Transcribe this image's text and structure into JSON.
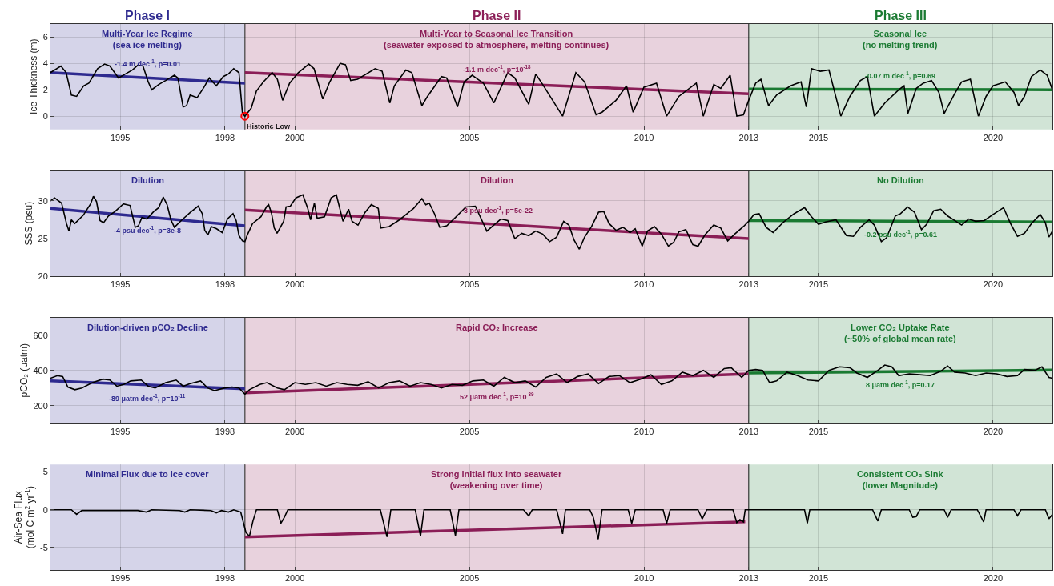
{
  "chart_data": [
    {
      "type": "line",
      "ylabel": "Ice Thickness (m)",
      "xlim": [
        1993.0,
        2021.7
      ],
      "ylim": [
        -1,
        7
      ],
      "yticks": [
        0,
        2,
        4,
        6
      ],
      "xticks": [
        1995,
        1998,
        2000,
        2005,
        2010,
        2013,
        2015,
        2020
      ],
      "grid": true,
      "bands": [
        {
          "axis": "x",
          "from": 1993.0,
          "to": 1998.57,
          "label": "Phase I",
          "color": "#2e2a8f"
        },
        {
          "axis": "x",
          "from": 1998.57,
          "to": 2013.0,
          "label": "Phase II",
          "color": "#8b1e57"
        },
        {
          "axis": "x",
          "from": 2013.0,
          "to": 2021.7,
          "label": "Phase III",
          "color": "#1a7a32"
        }
      ],
      "annotations": [
        "Multi-Year Ice Regime\n(sea ice melting)",
        "Multi-Year to Seasonal Ice Transition\n(seawater exposed to atmosphere, melting continues)",
        "Seasonal Ice\n(no melting trend)",
        "-1.4 m dec$^{-1}$, p=0.01",
        "-1.1 m dec$^{-1}$, p=10$^{-18}$",
        "-0.07 m dec$^{-1}$, p=0.69",
        {
          "text": "Historic Low",
          "x": 1998.57,
          "y": 0
        }
      ],
      "series": [
        {
          "color": "#000000",
          "x": [
            1993.0,
            1993.3,
            1993.45,
            1993.6,
            1993.75,
            1993.95,
            1994.1,
            1994.35,
            1994.55,
            1994.7,
            1994.95,
            1995.15,
            1995.35,
            1995.5,
            1995.65,
            1995.8,
            1995.9,
            1996.1,
            1996.3,
            1996.55,
            1996.65,
            1996.8,
            1996.9,
            1997.0,
            1997.2,
            1997.4,
            1997.55,
            1997.75,
            1997.95,
            1998.1,
            1998.25,
            1998.4,
            1998.5,
            1998.57,
            1998.75,
            1998.9,
            1999.1,
            1999.35,
            1999.5,
            1999.65,
            1999.85,
            2000.1,
            2000.4,
            2000.55,
            2000.8,
            2001.0,
            2001.3,
            2001.45,
            2001.6,
            2001.8,
            2002.3,
            2002.5,
            2002.72,
            2002.85,
            2003.18,
            2003.35,
            2003.64,
            2003.8,
            2004.2,
            2004.35,
            2004.66,
            2004.85,
            2005.08,
            2005.4,
            2005.7,
            2006.1,
            2006.3,
            2006.7,
            2006.9,
            2007.1,
            2007.67,
            2008.05,
            2008.3,
            2008.63,
            2008.8,
            2009.2,
            2009.5,
            2009.69,
            2010.0,
            2010.36,
            2010.65,
            2011.0,
            2011.5,
            2011.7,
            2012.0,
            2012.2,
            2012.47,
            2012.66,
            2012.85,
            2013.0,
            2013.2,
            2013.35,
            2013.57,
            2013.8,
            2014.2,
            2014.5,
            2014.65,
            2014.8,
            2015.05,
            2015.3,
            2015.64,
            2015.9,
            2016.2,
            2016.4,
            2016.6,
            2016.9,
            2017.3,
            2017.45,
            2017.56,
            2017.8,
            2018.0,
            2018.24,
            2018.45,
            2018.6,
            2018.9,
            2019.1,
            2019.35,
            2019.58,
            2019.8,
            2020.0,
            2020.35,
            2020.6,
            2020.73,
            2020.9,
            2021.1,
            2021.35,
            2021.55,
            2021.7
          ],
          "values": [
            3.3,
            3.8,
            3.3,
            1.6,
            1.5,
            2.3,
            2.5,
            3.6,
            3.95,
            3.8,
            2.9,
            3.2,
            3.5,
            3.85,
            3.8,
            2.6,
            2.0,
            2.4,
            2.7,
            3.1,
            2.9,
            0.7,
            0.8,
            1.6,
            1.4,
            2.2,
            2.9,
            2.3,
            3.0,
            3.2,
            3.6,
            3.3,
            0.2,
            0.0,
            0.6,
            1.9,
            2.6,
            3.3,
            2.8,
            1.2,
            2.5,
            3.3,
            3.95,
            3.6,
            1.3,
            2.6,
            4.0,
            3.9,
            2.7,
            2.8,
            3.6,
            3.4,
            1.0,
            2.3,
            3.5,
            3.3,
            0.8,
            1.5,
            3.0,
            2.9,
            0.7,
            2.6,
            3.1,
            2.5,
            1.0,
            3.3,
            2.9,
            0.9,
            3.2,
            2.4,
            0.0,
            3.3,
            2.6,
            0.1,
            0.3,
            1.2,
            2.3,
            0.3,
            2.2,
            2.5,
            0.0,
            1.5,
            2.5,
            0.0,
            2.4,
            2.1,
            3.1,
            0.0,
            0.1,
            1.2,
            2.5,
            2.8,
            0.8,
            1.6,
            2.3,
            2.6,
            0.7,
            3.6,
            3.4,
            3.5,
            0.0,
            1.5,
            2.7,
            3.0,
            0.0,
            1.0,
            2.0,
            2.3,
            0.2,
            2.1,
            2.5,
            2.7,
            1.8,
            0.2,
            1.7,
            2.6,
            2.8,
            0.0,
            1.5,
            2.3,
            2.6,
            1.8,
            0.8,
            1.5,
            3.0,
            3.5,
            3.1,
            2.0
          ]
        },
        {
          "color": "#2e2a8f",
          "x": [
            1993.0,
            1998.57
          ],
          "values": [
            3.3,
            2.5
          ]
        },
        {
          "color": "#8b1e57",
          "x": [
            1998.57,
            2013.0
          ],
          "values": [
            3.3,
            1.7
          ]
        },
        {
          "color": "#1a7a32",
          "x": [
            2013.0,
            2021.7
          ],
          "values": [
            2.05,
            2.0
          ]
        },
        {
          "type": "scatter",
          "marker": "circle",
          "color": "#ff0000",
          "x": [
            1998.57
          ],
          "values": [
            0
          ]
        }
      ]
    },
    {
      "type": "line",
      "ylabel": "SSS (psu)",
      "xlim": [
        1993.0,
        2021.7
      ],
      "ylim": [
        20,
        34
      ],
      "yticks": [
        20,
        25,
        30
      ],
      "xticks": [
        1995,
        1998,
        2000,
        2005,
        2010,
        2013,
        2015,
        2020
      ],
      "grid": true,
      "bands": [
        {
          "axis": "x",
          "from": 1993.0,
          "to": 1998.57,
          "color": "#2e2a8f"
        },
        {
          "axis": "x",
          "from": 1998.57,
          "to": 2013.0,
          "color": "#8b1e57"
        },
        {
          "axis": "x",
          "from": 2013.0,
          "to": 2021.7,
          "color": "#1a7a32"
        }
      ],
      "annotations": [
        "Dilution",
        "Dilution",
        "No Dilution",
        "-4 psu dec$^{-1}$, p=3e-8",
        "-3 psu dec$^{-1}$, p=5e-22",
        "-0.2 psu dec$^{-1}$, p=0.61"
      ],
      "series": [
        {
          "color": "#000000",
          "x": [
            1993.0,
            1993.12,
            1993.32,
            1993.46,
            1993.53,
            1993.6,
            1993.7,
            1993.94,
            1994.15,
            1994.23,
            1994.32,
            1994.42,
            1994.52,
            1994.66,
            1994.85,
            1995.09,
            1995.28,
            1995.43,
            1995.52,
            1995.62,
            1995.76,
            1995.96,
            1996.1,
            1996.23,
            1996.34,
            1996.45,
            1996.55,
            1996.77,
            1997.01,
            1997.23,
            1997.35,
            1997.42,
            1997.51,
            1997.61,
            1997.76,
            1997.92,
            1998.07,
            1998.23,
            1998.32,
            1998.4,
            1998.5,
            1998.57,
            1998.64,
            1998.79,
            1999.03,
            1999.2,
            1999.25,
            1999.33,
            1999.41,
            1999.49,
            1999.68,
            1999.75,
            1999.87,
            2000.03,
            2000.23,
            2000.37,
            2000.45,
            2000.56,
            2000.64,
            2000.85,
            2001.04,
            2001.19,
            2001.38,
            2001.54,
            2001.64,
            2001.81,
            2002.0,
            2002.19,
            2002.39,
            2002.46,
            2002.7,
            2003.0,
            2003.4,
            2003.64,
            2003.75,
            2003.85,
            2004.0,
            2004.15,
            2004.35,
            2004.6,
            2004.9,
            2005.17,
            2005.5,
            2005.7,
            2005.9,
            2006.1,
            2006.3,
            2006.5,
            2006.7,
            2006.9,
            2007.1,
            2007.3,
            2007.5,
            2007.7,
            2007.85,
            2008.0,
            2008.15,
            2008.3,
            2008.5,
            2008.7,
            2008.85,
            2009.0,
            2009.2,
            2009.4,
            2009.6,
            2009.75,
            2009.95,
            2010.1,
            2010.3,
            2010.5,
            2010.7,
            2010.85,
            2011.0,
            2011.2,
            2011.4,
            2011.55,
            2011.75,
            2012.0,
            2012.2,
            2012.4,
            2012.6,
            2012.85,
            2013.0,
            2013.15,
            2013.3,
            2013.5,
            2013.7,
            2014.0,
            2014.3,
            2014.6,
            2014.8,
            2015.0,
            2015.2,
            2015.5,
            2015.8,
            2016.0,
            2016.2,
            2016.45,
            2016.6,
            2016.8,
            2016.95,
            2017.2,
            2017.35,
            2017.55,
            2017.75,
            2017.95,
            2018.1,
            2018.3,
            2018.5,
            2018.7,
            2018.9,
            2019.1,
            2019.3,
            2019.5,
            2019.75,
            2020.0,
            2020.3,
            2020.5,
            2020.7,
            2020.9,
            2021.1,
            2021.35,
            2021.5,
            2021.6,
            2021.7
          ],
          "values": [
            30.0,
            30.4,
            29.7,
            27.0,
            26.0,
            27.5,
            27.0,
            28.1,
            29.6,
            30.6,
            29.9,
            27.4,
            27.1,
            28.0,
            28.6,
            29.6,
            29.4,
            26.5,
            26.7,
            27.8,
            27.6,
            28.6,
            29.1,
            30.5,
            29.5,
            27.5,
            26.5,
            27.5,
            28.5,
            29.3,
            28.3,
            26.1,
            25.5,
            26.6,
            26.3,
            25.8,
            27.6,
            28.3,
            27.4,
            25.4,
            24.7,
            24.6,
            25.5,
            27.0,
            27.9,
            29.3,
            29.5,
            28.4,
            26.4,
            25.7,
            27.3,
            29.2,
            29.3,
            30.4,
            30.8,
            29.0,
            27.5,
            29.7,
            27.7,
            27.9,
            30.4,
            30.8,
            27.3,
            28.9,
            27.3,
            26.8,
            28.4,
            29.5,
            29.0,
            26.4,
            26.6,
            27.5,
            29.0,
            30.3,
            29.5,
            29.7,
            28.3,
            26.5,
            26.7,
            27.8,
            29.2,
            29.3,
            26.0,
            26.8,
            27.6,
            27.4,
            25.0,
            25.7,
            25.4,
            26.0,
            25.6,
            24.6,
            25.2,
            27.3,
            26.8,
            24.8,
            23.6,
            25.2,
            26.6,
            28.5,
            28.6,
            27.0,
            26.1,
            26.5,
            25.8,
            26.3,
            24.0,
            26.0,
            26.6,
            25.6,
            24.0,
            24.5,
            25.9,
            26.2,
            24.2,
            24.0,
            25.5,
            26.8,
            26.4,
            24.7,
            25.6,
            26.6,
            27.3,
            28.2,
            28.3,
            26.5,
            25.8,
            27.2,
            28.3,
            29.1,
            27.9,
            26.9,
            27.2,
            27.5,
            25.4,
            25.3,
            26.5,
            27.5,
            26.8,
            24.6,
            25.1,
            28.0,
            28.3,
            29.2,
            28.5,
            26.2,
            26.9,
            28.7,
            28.9,
            28.0,
            27.4,
            26.8,
            27.6,
            27.3,
            27.4,
            28.2,
            29.1,
            27.0,
            25.3,
            25.7,
            27.0,
            28.2,
            27.1,
            25.2,
            26.0
          ]
        },
        {
          "color": "#2e2a8f",
          "x": [
            1993.0,
            1998.57
          ],
          "values": [
            29.0,
            26.7
          ]
        },
        {
          "color": "#8b1e57",
          "x": [
            1998.57,
            2013.0
          ],
          "values": [
            28.8,
            25.0
          ]
        },
        {
          "color": "#1a7a32",
          "x": [
            2013.0,
            2021.7
          ],
          "values": [
            27.4,
            27.2
          ]
        }
      ]
    },
    {
      "type": "line",
      "ylabel": "pCO₂ (μatm)",
      "xlim": [
        1993.0,
        2021.7
      ],
      "ylim": [
        100,
        700
      ],
      "yticks": [
        200,
        400,
        600
      ],
      "xticks": [
        1995,
        1998,
        2000,
        2005,
        2010,
        2013,
        2015,
        2020
      ],
      "grid": true,
      "bands": [
        {
          "axis": "x",
          "from": 1993.0,
          "to": 1998.57,
          "color": "#2e2a8f"
        },
        {
          "axis": "x",
          "from": 1998.57,
          "to": 2013.0,
          "color": "#8b1e57"
        },
        {
          "axis": "x",
          "from": 2013.0,
          "to": 2021.7,
          "color": "#1a7a32"
        }
      ],
      "annotations": [
        "Dilution-driven pCO₂ Decline",
        "Rapid CO₂ Increase",
        "Lower CO₂ Uptake Rate\n(~50% of global mean rate)",
        "-89 μatm dec$^{-1}$, p=10$^{-11}$",
        "52 μatm dec$^{-1}$, p=10$^{-39}$",
        "8 μatm dec$^{-1}$, p=0.17"
      ],
      "series": [
        {
          "color": "#000000",
          "x": [
            1993.0,
            1993.2,
            1993.35,
            1993.5,
            1993.7,
            1993.9,
            1994.2,
            1994.5,
            1994.7,
            1994.9,
            1995.1,
            1995.3,
            1995.6,
            1995.8,
            1996.0,
            1996.3,
            1996.6,
            1996.8,
            1997.0,
            1997.3,
            1997.5,
            1997.7,
            1998.0,
            1998.2,
            1998.4,
            1998.57,
            1998.7,
            1999.0,
            1999.2,
            1999.5,
            1999.7,
            2000.0,
            2000.3,
            2000.6,
            2000.9,
            2001.2,
            2001.5,
            2001.8,
            2002.1,
            2002.4,
            2002.7,
            2003.0,
            2003.3,
            2003.6,
            2003.9,
            2004.2,
            2004.5,
            2004.8,
            2005.1,
            2005.4,
            2005.7,
            2006.0,
            2006.3,
            2006.6,
            2006.9,
            2007.2,
            2007.5,
            2007.8,
            2008.1,
            2008.4,
            2008.7,
            2009.0,
            2009.3,
            2009.6,
            2009.9,
            2010.2,
            2010.5,
            2010.8,
            2011.1,
            2011.4,
            2011.7,
            2012.0,
            2012.3,
            2012.5,
            2012.8,
            2013.0,
            2013.2,
            2013.4,
            2013.6,
            2013.8,
            2014.1,
            2014.4,
            2014.7,
            2015.0,
            2015.3,
            2015.6,
            2015.9,
            2016.1,
            2016.4,
            2016.7,
            2016.9,
            2017.1,
            2017.3,
            2017.6,
            2017.9,
            2018.2,
            2018.5,
            2018.7,
            2018.9,
            2019.2,
            2019.5,
            2019.8,
            2020.1,
            2020.4,
            2020.7,
            2020.9,
            2021.2,
            2021.4,
            2021.6,
            2021.7
          ],
          "values": [
            355,
            370,
            365,
            305,
            290,
            300,
            330,
            350,
            345,
            310,
            320,
            340,
            345,
            310,
            300,
            330,
            345,
            310,
            325,
            340,
            300,
            285,
            300,
            305,
            300,
            265,
            290,
            320,
            330,
            300,
            290,
            330,
            320,
            330,
            310,
            330,
            320,
            315,
            335,
            300,
            330,
            340,
            310,
            330,
            320,
            300,
            320,
            315,
            340,
            345,
            310,
            360,
            330,
            340,
            305,
            360,
            380,
            330,
            365,
            380,
            325,
            365,
            370,
            330,
            350,
            375,
            320,
            340,
            390,
            370,
            400,
            360,
            410,
            415,
            360,
            400,
            405,
            400,
            330,
            340,
            390,
            370,
            345,
            340,
            400,
            420,
            415,
            385,
            360,
            400,
            430,
            420,
            370,
            380,
            375,
            370,
            395,
            425,
            390,
            385,
            370,
            385,
            380,
            365,
            370,
            405,
            400,
            420,
            360,
            355
          ]
        },
        {
          "color": "#2e2a8f",
          "x": [
            1993.0,
            1998.57
          ],
          "values": [
            340,
            295
          ]
        },
        {
          "color": "#8b1e57",
          "x": [
            1998.57,
            2013.0
          ],
          "values": [
            272,
            380
          ]
        },
        {
          "color": "#1a7a32",
          "x": [
            2013.0,
            2021.7
          ],
          "values": [
            385,
            402
          ]
        }
      ]
    },
    {
      "type": "line",
      "ylabel": "Air-Sea Flux\n(mol C m$^{2}$ yr$^{-1}$)",
      "xlim": [
        1993.0,
        2021.7
      ],
      "ylim": [
        -8,
        6
      ],
      "yticks": [
        -5,
        0,
        5
      ],
      "xticks": [
        1995,
        1998,
        2000,
        2005,
        2010,
        2013,
        2015,
        2020
      ],
      "grid": true,
      "bands": [
        {
          "axis": "x",
          "from": 1993.0,
          "to": 1998.57,
          "color": "#2e2a8f"
        },
        {
          "axis": "x",
          "from": 1998.57,
          "to": 2013.0,
          "color": "#8b1e57"
        },
        {
          "axis": "x",
          "from": 2013.0,
          "to": 2021.7,
          "color": "#1a7a32"
        }
      ],
      "annotations": [
        "Minimal Flux due to ice cover",
        "Strong initial flux into seawater\n(weakening over time)",
        "Consistent CO₂ Sink\n(lower Magnitude)"
      ],
      "series": [
        {
          "color": "#000000",
          "x": [
            1993.0,
            1993.6,
            1993.75,
            1993.9,
            1995.5,
            1995.75,
            1995.9,
            1996.7,
            1996.85,
            1997.0,
            1997.6,
            1997.75,
            1997.9,
            1998.1,
            1998.25,
            1998.45,
            1998.6,
            1998.7,
            1998.8,
            1998.9,
            1999.5,
            1999.6,
            1999.7,
            1999.8,
            2002.45,
            2002.64,
            2002.75,
            2003.45,
            2003.6,
            2003.7,
            2004.45,
            2004.6,
            2004.7,
            2006.55,
            2006.7,
            2006.8,
            2007.5,
            2007.67,
            2007.75,
            2008.45,
            2008.55,
            2008.69,
            2008.8,
            2009.55,
            2009.65,
            2009.75,
            2010.55,
            2010.65,
            2010.75,
            2011.55,
            2011.67,
            2011.8,
            2012.55,
            2012.66,
            2012.75,
            2012.85,
            2012.9,
            2014.6,
            2014.68,
            2014.75,
            2016.55,
            2016.7,
            2016.8,
            2017.6,
            2017.7,
            2017.8,
            2017.9,
            2018.6,
            2018.7,
            2018.8,
            2019.55,
            2019.73,
            2019.8,
            2020.6,
            2020.7,
            2020.8,
            2021.5,
            2021.6,
            2021.7
          ],
          "values": [
            0,
            0,
            -0.6,
            -0.1,
            -0.1,
            -0.3,
            0,
            -0.1,
            -0.3,
            0,
            -0.1,
            -0.4,
            -0.1,
            -0.3,
            0,
            -0.3,
            -3.0,
            -3.5,
            -1.5,
            0,
            0,
            -1.8,
            -1.0,
            0,
            0,
            -3.6,
            0,
            0,
            -3.5,
            0,
            0,
            -3.4,
            0,
            0,
            -0.8,
            0,
            0,
            -3.2,
            0,
            0,
            -1.0,
            -3.9,
            0,
            0,
            -1.8,
            0,
            0,
            -1.8,
            0,
            0,
            -1.2,
            0,
            0,
            -1.7,
            -1.3,
            -1.6,
            0,
            0,
            -1.8,
            0,
            0,
            -1.5,
            0,
            0,
            -1.0,
            -0.9,
            0,
            0,
            -1.0,
            0,
            0,
            -1.6,
            0,
            0,
            -0.8,
            0,
            0,
            -1.2,
            -0.6
          ]
        },
        {
          "color": "#8b1e57",
          "x": [
            1998.57,
            2012.9
          ],
          "values": [
            -3.6,
            -1.6
          ]
        }
      ]
    }
  ]
}
